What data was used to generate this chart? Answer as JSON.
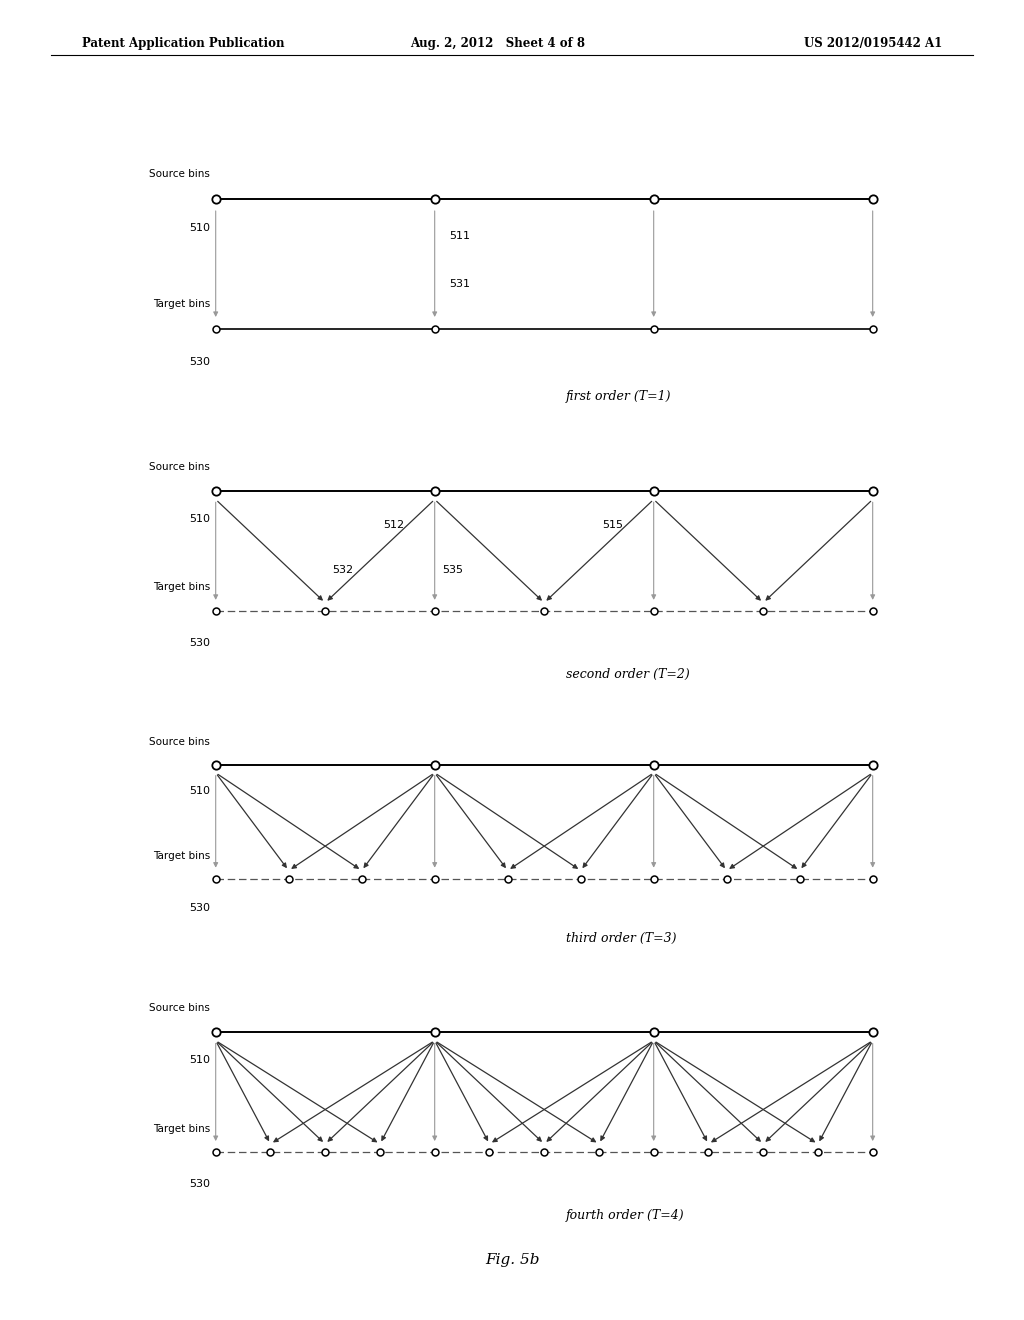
{
  "header_left": "Patent Application Publication",
  "header_mid": "Aug. 2, 2012   Sheet 4 of 8",
  "header_right": "US 2012/0195442 A1",
  "figure_label": "Fig. 5b",
  "panels": [
    {
      "order": 1,
      "label": "first order (T=1)",
      "source_label": "Source bins",
      "source_num": "510",
      "target_label": "Target bins",
      "target_num": "530",
      "source_bins": [
        0,
        3,
        6,
        9
      ],
      "target_bins": [
        0,
        3,
        6,
        9
      ],
      "arrows": [
        [
          0,
          0
        ],
        [
          3,
          3
        ],
        [
          6,
          6
        ],
        [
          9,
          9
        ]
      ],
      "annotations": [
        {
          "text": "511",
          "x": 3.2,
          "y": "mid_upper"
        },
        {
          "text": "531",
          "x": 3.2,
          "y": "mid_lower"
        }
      ],
      "target_dashed": false
    },
    {
      "order": 2,
      "label": "second order (T=2)",
      "source_label": "Source bins",
      "source_num": "510",
      "target_label": "Target bins",
      "target_num": "530",
      "source_bins": [
        0,
        3,
        6,
        9
      ],
      "target_bins": [
        0,
        1.5,
        3,
        4.5,
        6,
        7.5,
        9
      ],
      "arrows": [
        [
          0,
          0
        ],
        [
          0,
          1.5
        ],
        [
          3,
          1.5
        ],
        [
          3,
          3
        ],
        [
          3,
          4.5
        ],
        [
          6,
          4.5
        ],
        [
          6,
          6
        ],
        [
          6,
          7.5
        ],
        [
          9,
          7.5
        ],
        [
          9,
          9
        ]
      ],
      "annotations": [
        {
          "text": "512",
          "x": 2.3,
          "y": "mid_upper"
        },
        {
          "text": "515",
          "x": 5.3,
          "y": "mid_upper"
        },
        {
          "text": "532",
          "x": 1.6,
          "y": "mid_lower"
        },
        {
          "text": "535",
          "x": 3.1,
          "y": "mid_lower"
        }
      ],
      "target_dashed": true
    },
    {
      "order": 3,
      "label": "third order (T=3)",
      "source_label": "Source bins",
      "source_num": "510",
      "target_label": "Target bins",
      "target_num": "530",
      "source_bins": [
        0,
        3,
        6,
        9
      ],
      "target_bins": [
        0,
        1,
        2,
        3,
        4,
        5,
        6,
        7,
        8,
        9
      ],
      "arrows": [
        [
          0,
          0
        ],
        [
          0,
          1
        ],
        [
          0,
          2
        ],
        [
          3,
          1
        ],
        [
          3,
          2
        ],
        [
          3,
          3
        ],
        [
          3,
          4
        ],
        [
          3,
          5
        ],
        [
          6,
          4
        ],
        [
          6,
          5
        ],
        [
          6,
          6
        ],
        [
          6,
          7
        ],
        [
          6,
          8
        ],
        [
          9,
          7
        ],
        [
          9,
          8
        ],
        [
          9,
          9
        ]
      ],
      "annotations": [],
      "target_dashed": true
    },
    {
      "order": 4,
      "label": "fourth order (T=4)",
      "source_label": "Source bins",
      "source_num": "510",
      "target_label": "Target bins",
      "target_num": "530",
      "source_bins": [
        0,
        3,
        6,
        9
      ],
      "target_bins": [
        0,
        0.75,
        1.5,
        2.25,
        3,
        3.75,
        4.5,
        5.25,
        6,
        6.75,
        7.5,
        8.25,
        9
      ],
      "arrows": [
        [
          0,
          0
        ],
        [
          0,
          0.75
        ],
        [
          0,
          1.5
        ],
        [
          0,
          2.25
        ],
        [
          3,
          0.75
        ],
        [
          3,
          1.5
        ],
        [
          3,
          2.25
        ],
        [
          3,
          3
        ],
        [
          3,
          3.75
        ],
        [
          3,
          4.5
        ],
        [
          3,
          5.25
        ],
        [
          6,
          3.75
        ],
        [
          6,
          4.5
        ],
        [
          6,
          5.25
        ],
        [
          6,
          6
        ],
        [
          6,
          6.75
        ],
        [
          6,
          7.5
        ],
        [
          6,
          8.25
        ],
        [
          9,
          6.75
        ],
        [
          9,
          7.5
        ],
        [
          9,
          8.25
        ],
        [
          9,
          9
        ]
      ],
      "annotations": [],
      "target_dashed": true
    }
  ]
}
